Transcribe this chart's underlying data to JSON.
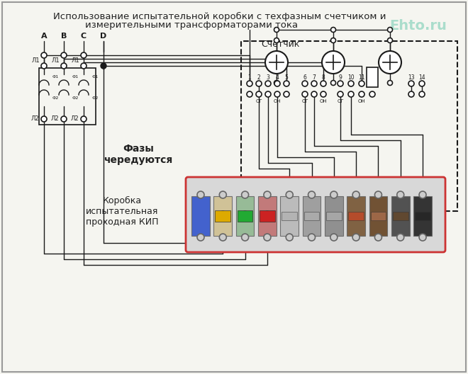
{
  "title_line1": "Использование испытательной коробки с техфазным счетчиком и",
  "title_line2": "измерительными трансформаторами тока",
  "watermark": "Ehto.ru",
  "label_schetchik": "Счетчик",
  "label_fazy": "Фазы\nчередуются",
  "label_korobka": "Коробка\nиспытательная\nпроходная КИП",
  "bg_color": "#f5f5f0",
  "line_color": "#1a1a1a",
  "schetchik_bg": "#ffffff",
  "kip_box_color": "#cc3333",
  "kip_bg": "#e8e8e8",
  "terminal_colors": {
    "0_blue": "#3355cc",
    "A_yellow": "#ddaa00",
    "B_green": "#228833",
    "C_red": "#cc2222",
    "1_gray": "#999999",
    "2_gray": "#888888",
    "3_gray": "#777777",
    "4_brown": "#885533",
    "5_darkbrown": "#664422",
    "6_black": "#333333",
    "7_black": "#222222"
  }
}
